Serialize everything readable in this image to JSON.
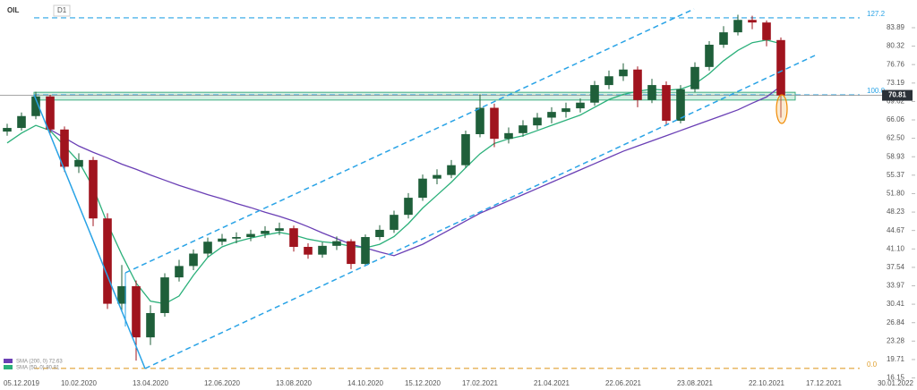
{
  "chart_data": {
    "type": "candlestick",
    "title": "OIL",
    "timeframe": "D1",
    "categories": [
      null,
      "05.12.2019",
      null,
      null,
      null,
      "10.02.2020",
      null,
      null,
      null,
      null,
      "13.04.2020",
      null,
      null,
      null,
      null,
      "12.06.2020",
      null,
      null,
      null,
      null,
      "13.08.2020",
      null,
      null,
      null,
      null,
      "14.10.2020",
      null,
      null,
      null,
      "15.12.2020",
      null,
      null,
      null,
      "17.02.2021",
      null,
      null,
      null,
      null,
      "21.04.2021",
      null,
      null,
      null,
      null,
      "22.06.2021",
      null,
      null,
      null,
      null,
      "23.08.2021",
      null,
      null,
      null,
      null,
      "22.10.2021",
      null,
      null,
      null,
      "17.12.2021",
      null,
      null,
      null,
      null,
      "30.01.2022",
      null
    ],
    "open": [
      63.8,
      64.5,
      66.8,
      70.6,
      64.2,
      57.0,
      58.3,
      47.0,
      30.5,
      33.9,
      24.0,
      28.7,
      35.6,
      37.8,
      40.2,
      42.5,
      43.1,
      43.4,
      44.0,
      44.6,
      45.1,
      41.5,
      40.0,
      41.7,
      42.6,
      38.2,
      43.4,
      44.8,
      47.7,
      51.0,
      54.7,
      55.4,
      57.3,
      63.3,
      68.4,
      62.4,
      63.5,
      65.0,
      66.5,
      67.6,
      68.3,
      69.4,
      72.8,
      74.5,
      75.8,
      69.9,
      72.8,
      65.9,
      72.0,
      76.3,
      80.6,
      83.0,
      85.4,
      84.9,
      81.5,
      null,
      null,
      null,
      null,
      null,
      null,
      null,
      null,
      null
    ],
    "high": [
      65.3,
      67.5,
      71.5,
      70.9,
      64.8,
      59.6,
      58.9,
      48.0,
      38.0,
      35.0,
      30.2,
      36.4,
      39.0,
      41.0,
      43.3,
      44.0,
      44.3,
      44.8,
      45.5,
      46.2,
      45.6,
      42.2,
      42.4,
      43.5,
      43.0,
      43.9,
      45.7,
      48.5,
      51.9,
      55.5,
      56.5,
      58.3,
      64.0,
      71.0,
      69.2,
      64.6,
      66.0,
      67.4,
      68.5,
      69.4,
      70.2,
      73.6,
      75.6,
      77.0,
      76.4,
      74.0,
      73.5,
      72.8,
      77.2,
      81.3,
      84.2,
      86.4,
      86.2,
      85.3,
      82.0,
      null,
      null,
      null,
      null,
      null,
      null,
      null,
      null,
      null
    ],
    "low": [
      63.0,
      64.0,
      66.2,
      63.5,
      56.0,
      55.8,
      45.5,
      29.5,
      29.0,
      19.5,
      22.5,
      28.0,
      34.8,
      37.0,
      39.5,
      41.8,
      42.2,
      42.6,
      43.2,
      43.8,
      40.6,
      39.2,
      39.4,
      40.9,
      37.2,
      37.8,
      42.8,
      44.2,
      47.0,
      50.4,
      53.6,
      54.8,
      56.8,
      62.7,
      60.8,
      61.5,
      62.8,
      64.2,
      65.4,
      66.5,
      67.5,
      68.8,
      72.0,
      73.6,
      68.5,
      69.3,
      65.0,
      65.4,
      71.4,
      75.6,
      80.0,
      82.4,
      83.6,
      80.3,
      66.5,
      null,
      null,
      null,
      null,
      null,
      null,
      null,
      null,
      null
    ],
    "close": [
      64.5,
      66.8,
      70.6,
      64.2,
      57.0,
      58.3,
      47.0,
      30.5,
      33.9,
      24.0,
      28.7,
      35.6,
      37.8,
      40.2,
      42.5,
      43.1,
      43.4,
      44.0,
      44.6,
      45.1,
      41.5,
      40.0,
      41.7,
      42.6,
      38.2,
      43.4,
      44.8,
      47.7,
      51.0,
      54.7,
      55.4,
      57.3,
      63.3,
      68.4,
      62.4,
      63.5,
      65.0,
      66.5,
      67.6,
      68.3,
      69.4,
      72.8,
      74.5,
      75.8,
      69.9,
      72.8,
      65.9,
      72.0,
      76.3,
      80.6,
      83.0,
      85.4,
      84.9,
      81.5,
      70.81,
      null,
      null,
      null,
      null,
      null,
      null,
      null,
      null,
      null
    ],
    "up_color": "#1f5f3a",
    "down_color": "#a0141e",
    "lines": [
      {
        "name": "SMA (200, 0) 72.63",
        "color": "#6a3fb5",
        "values": [
          null,
          null,
          null,
          64.2,
          62.6,
          61.0,
          59.8,
          58.7,
          57.5,
          56.5,
          55.4,
          54.4,
          53.4,
          52.5,
          51.6,
          50.8,
          49.9,
          49.1,
          48.2,
          47.4,
          46.5,
          45.4,
          44.2,
          43.1,
          42.0,
          41.3,
          40.5,
          39.8,
          40.9,
          42.0,
          43.5,
          45.0,
          46.5,
          48.0,
          49.2,
          50.4,
          51.6,
          52.8,
          54.0,
          55.2,
          56.4,
          57.6,
          58.8,
          60.0,
          61.0,
          62.0,
          63.0,
          64.0,
          65.0,
          66.0,
          67.0,
          68.0,
          69.3,
          70.5,
          72.6,
          null,
          null,
          null,
          null,
          null,
          null,
          null,
          null,
          null
        ]
      },
      {
        "name": "SMA (50, 0) 80.81",
        "color": "#2bb07a",
        "values": [
          61.6,
          63.5,
          65.0,
          64.0,
          61.0,
          58.0,
          53.0,
          46.0,
          40.0,
          34.5,
          31.0,
          30.5,
          32.0,
          36.0,
          39.5,
          41.5,
          42.5,
          43.2,
          43.8,
          44.3,
          43.8,
          43.0,
          42.5,
          42.2,
          41.6,
          41.3,
          42.0,
          43.5,
          46.0,
          49.0,
          51.5,
          54.0,
          56.8,
          59.5,
          61.5,
          62.4,
          63.0,
          64.0,
          65.0,
          66.0,
          67.0,
          68.5,
          70.0,
          71.0,
          71.6,
          72.0,
          71.8,
          72.0,
          73.0,
          75.0,
          77.5,
          79.5,
          81.0,
          81.5,
          80.81,
          null,
          null,
          null,
          null,
          null,
          null,
          null,
          null,
          null
        ]
      }
    ],
    "levels": [
      {
        "value": 85.8,
        "label": "127.2",
        "color": "#29a3e6"
      },
      {
        "value": 70.9,
        "label": "100.0",
        "color": "#29a3e6"
      },
      {
        "value": 18.0,
        "label": "0.0",
        "color": "#e0a030"
      }
    ],
    "zone": [
      69.9,
      71.4
    ],
    "last_price": 70.81,
    "ylim": [
      15.72,
      89.25
    ],
    "yticks": [
      83.89,
      80.32,
      76.76,
      73.19,
      {
        "value": 69.62,
        "label": "69.62"
      },
      66.06,
      {
        "value": 62.5,
        "label": "62.50"
      },
      58.93,
      55.37,
      {
        "value": 51.8,
        "label": "51.80"
      },
      48.23,
      44.67,
      {
        "value": 41.1,
        "label": "41.10"
      },
      37.54,
      33.97,
      30.41,
      26.84,
      23.28,
      19.71,
      16.15
    ]
  }
}
